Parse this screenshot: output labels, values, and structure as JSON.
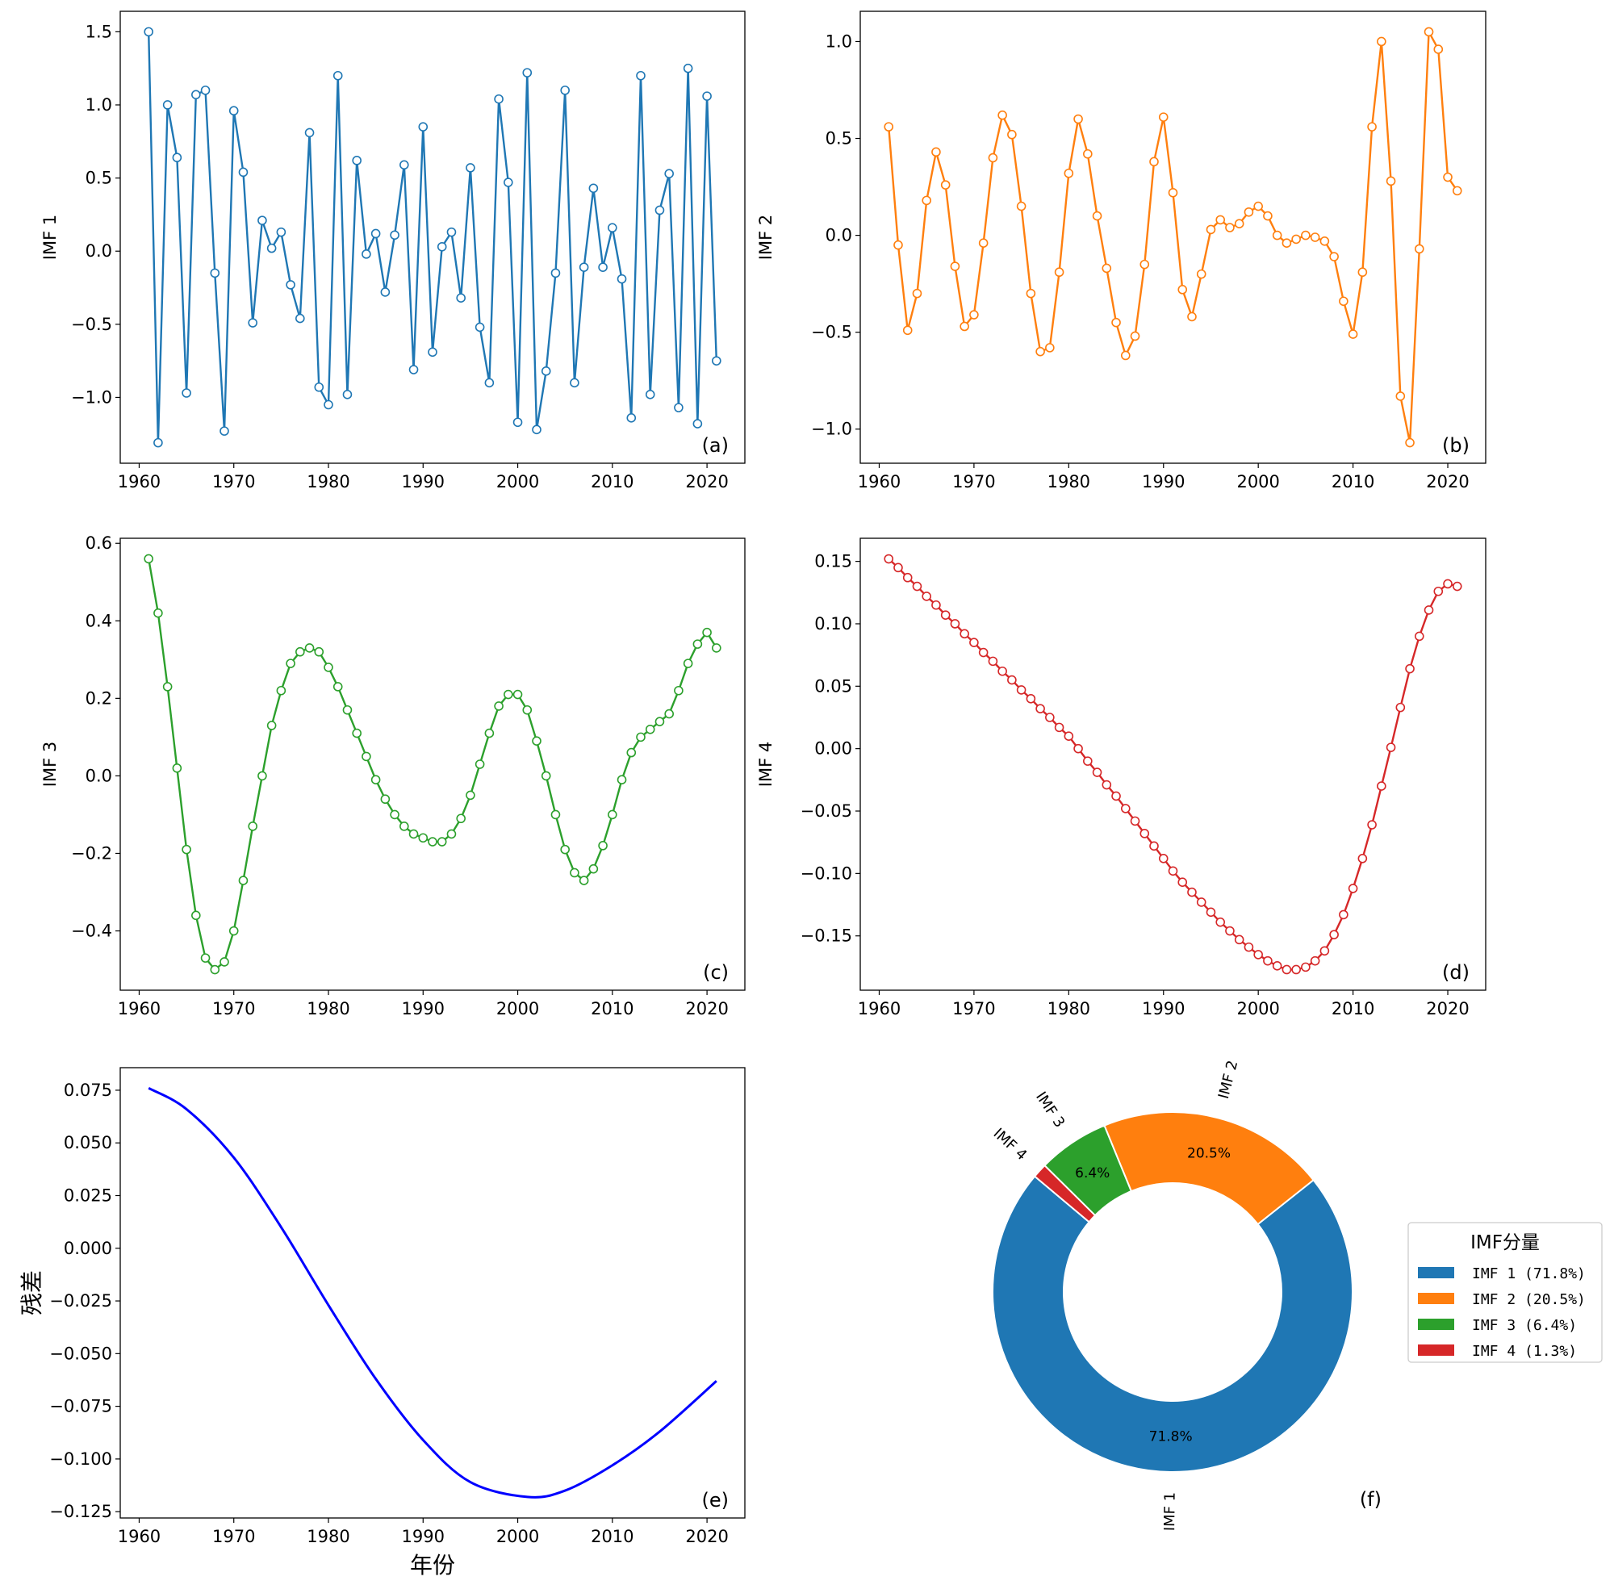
{
  "chart_data": [
    {
      "type": "line",
      "panel_label": "(a)",
      "ylabel": "IMF 1",
      "xlabel": "",
      "color": "#1f77b4",
      "markers": "hollow-circle",
      "xlim": [
        1958,
        2024
      ],
      "ylim": [
        -1.45,
        1.64
      ],
      "xticks": [
        1960,
        1970,
        1980,
        1990,
        2000,
        2010,
        2020
      ],
      "xtick_labels": [
        "1960",
        "1970",
        "1980",
        "1990",
        "2000",
        "2010",
        "2020"
      ],
      "yticks": [
        -1.0,
        -0.5,
        0.0,
        0.5,
        1.0,
        1.5
      ],
      "ytick_labels": [
        "−1.0",
        "−0.5",
        "0.0",
        "0.5",
        "1.0",
        "1.5"
      ],
      "x_start": 1961,
      "values": [
        1.5,
        -1.31,
        1.0,
        0.64,
        -0.97,
        1.07,
        1.1,
        -0.15,
        -1.23,
        0.96,
        0.54,
        -0.49,
        0.21,
        0.02,
        0.13,
        -0.23,
        -0.46,
        0.81,
        -0.93,
        -1.05,
        1.2,
        -0.98,
        0.62,
        -0.02,
        0.12,
        -0.28,
        0.11,
        0.59,
        -0.81,
        0.85,
        -0.69,
        0.03,
        0.13,
        -0.32,
        0.57,
        -0.52,
        -0.9,
        1.04,
        0.47,
        -1.17,
        1.22,
        -1.22,
        -0.82,
        -0.15,
        1.1,
        -0.9,
        -0.11,
        0.43,
        -0.11,
        0.16,
        -0.19,
        -1.14,
        1.2,
        -0.98,
        0.28,
        0.53,
        -1.07,
        1.25,
        -1.18,
        1.06,
        -0.75
      ]
    },
    {
      "type": "line",
      "panel_label": "(b)",
      "ylabel": "IMF 2",
      "xlabel": "",
      "color": "#ff7f0e",
      "markers": "hollow-circle",
      "xlim": [
        1958,
        2024
      ],
      "ylim": [
        -1.176,
        1.156
      ],
      "xticks": [
        1960,
        1970,
        1980,
        1990,
        2000,
        2010,
        2020
      ],
      "xtick_labels": [
        "1960",
        "1970",
        "1980",
        "1990",
        "2000",
        "2010",
        "2020"
      ],
      "yticks": [
        -1.0,
        -0.5,
        0.0,
        0.5,
        1.0
      ],
      "ytick_labels": [
        "−1.0",
        "−0.5",
        "0.0",
        "0.5",
        "1.0"
      ],
      "x_start": 1961,
      "values": [
        0.56,
        -0.05,
        -0.49,
        -0.3,
        0.18,
        0.43,
        0.26,
        -0.16,
        -0.47,
        -0.41,
        -0.04,
        0.4,
        0.62,
        0.52,
        0.15,
        -0.3,
        -0.6,
        -0.58,
        -0.19,
        0.32,
        0.6,
        0.42,
        0.1,
        -0.17,
        -0.45,
        -0.62,
        -0.52,
        -0.15,
        0.38,
        0.61,
        0.22,
        -0.28,
        -0.42,
        -0.2,
        0.03,
        0.08,
        0.04,
        0.06,
        0.12,
        0.15,
        0.1,
        0.0,
        -0.04,
        -0.02,
        0.0,
        -0.01,
        -0.03,
        -0.11,
        -0.34,
        -0.51,
        -0.19,
        0.56,
        1.0,
        0.28,
        -0.83,
        -1.07,
        -0.07,
        1.05,
        0.96,
        0.3,
        0.23
      ]
    },
    {
      "type": "line",
      "panel_label": "(c)",
      "ylabel": "IMF 3",
      "xlabel": "",
      "color": "#2ca02c",
      "markers": "hollow-circle",
      "xlim": [
        1958,
        2024
      ],
      "ylim": [
        -0.553,
        0.613
      ],
      "xticks": [
        1960,
        1970,
        1980,
        1990,
        2000,
        2010,
        2020
      ],
      "xtick_labels": [
        "1960",
        "1970",
        "1980",
        "1990",
        "2000",
        "2010",
        "2020"
      ],
      "yticks": [
        -0.4,
        -0.2,
        0.0,
        0.2,
        0.4,
        0.6
      ],
      "ytick_labels": [
        "−0.4",
        "−0.2",
        "0.0",
        "0.2",
        "0.4",
        "0.6"
      ],
      "x_start": 1961,
      "values": [
        0.56,
        0.42,
        0.23,
        0.02,
        -0.19,
        -0.36,
        -0.47,
        -0.5,
        -0.48,
        -0.4,
        -0.27,
        -0.13,
        0.0,
        0.13,
        0.22,
        0.29,
        0.32,
        0.33,
        0.32,
        0.28,
        0.23,
        0.17,
        0.11,
        0.05,
        -0.01,
        -0.06,
        -0.1,
        -0.13,
        -0.15,
        -0.16,
        -0.17,
        -0.17,
        -0.15,
        -0.11,
        -0.05,
        0.03,
        0.11,
        0.18,
        0.21,
        0.21,
        0.17,
        0.09,
        0.0,
        -0.1,
        -0.19,
        -0.25,
        -0.27,
        -0.24,
        -0.18,
        -0.1,
        -0.01,
        0.06,
        0.1,
        0.12,
        0.14,
        0.16,
        0.22,
        0.29,
        0.34,
        0.37,
        0.33
      ]
    },
    {
      "type": "line",
      "panel_label": "(d)",
      "ylabel": "IMF 4",
      "xlabel": "",
      "color": "#d62728",
      "markers": "hollow-circle",
      "xlim": [
        1958,
        2024
      ],
      "ylim": [
        -0.1935,
        0.1685
      ],
      "xticks": [
        1960,
        1970,
        1980,
        1990,
        2000,
        2010,
        2020
      ],
      "xtick_labels": [
        "1960",
        "1970",
        "1980",
        "1990",
        "2000",
        "2010",
        "2020"
      ],
      "yticks": [
        -0.15,
        -0.1,
        -0.05,
        0.0,
        0.05,
        0.1,
        0.15
      ],
      "ytick_labels": [
        "−0.15",
        "−0.10",
        "−0.05",
        "0.00",
        "0.05",
        "0.10",
        "0.15"
      ],
      "x_start": 1961,
      "values": [
        0.152,
        0.145,
        0.137,
        0.13,
        0.122,
        0.115,
        0.107,
        0.1,
        0.092,
        0.085,
        0.077,
        0.07,
        0.062,
        0.055,
        0.047,
        0.04,
        0.032,
        0.025,
        0.017,
        0.01,
        0.0,
        -0.01,
        -0.019,
        -0.029,
        -0.038,
        -0.048,
        -0.058,
        -0.068,
        -0.078,
        -0.088,
        -0.098,
        -0.107,
        -0.115,
        -0.123,
        -0.131,
        -0.139,
        -0.146,
        -0.153,
        -0.159,
        -0.165,
        -0.17,
        -0.174,
        -0.177,
        -0.177,
        -0.175,
        -0.17,
        -0.162,
        -0.149,
        -0.133,
        -0.112,
        -0.088,
        -0.061,
        -0.03,
        0.001,
        0.033,
        0.064,
        0.09,
        0.111,
        0.126,
        0.132,
        0.13
      ]
    },
    {
      "type": "line",
      "panel_label": "(e)",
      "ylabel": "残差",
      "xlabel": "年份",
      "color": "#0000ff",
      "markers": "none",
      "xlim": [
        1958,
        2024
      ],
      "ylim": [
        -0.128,
        0.0857
      ],
      "xticks": [
        1960,
        1970,
        1980,
        1990,
        2000,
        2010,
        2020
      ],
      "xtick_labels": [
        "1960",
        "1970",
        "1980",
        "1990",
        "2000",
        "2010",
        "2020"
      ],
      "yticks": [
        -0.125,
        -0.1,
        -0.075,
        -0.05,
        -0.025,
        0.0,
        0.025,
        0.05,
        0.075
      ],
      "ytick_labels": [
        "−0.125",
        "−0.100",
        "−0.075",
        "−0.050",
        "−0.025",
        "0.000",
        "0.025",
        "0.050",
        "0.075"
      ],
      "x": [
        1961,
        1965,
        1970,
        1975,
        1980,
        1985,
        1990,
        1995,
        2001,
        2005,
        2010,
        2015,
        2021
      ],
      "values": [
        0.076,
        0.066,
        0.043,
        0.01,
        -0.027,
        -0.062,
        -0.091,
        -0.111,
        -0.118,
        -0.115,
        -0.103,
        -0.087,
        -0.063
      ]
    },
    {
      "type": "pie",
      "panel_label": "(f)",
      "donut": true,
      "startangle": 140,
      "labels": [
        "IMF 1",
        "IMF 2",
        "IMF 3",
        "IMF 4"
      ],
      "values": [
        71.8,
        20.5,
        6.4,
        1.3
      ],
      "pct_labels": [
        "71.8%",
        "20.5%",
        "6.4%",
        ""
      ],
      "colors": [
        "#1f77b4",
        "#ff7f0e",
        "#2ca02c",
        "#d62728"
      ],
      "legend": {
        "title": "IMF分量",
        "placement": "right",
        "entries": [
          "IMF 1 (71.8%)",
          "IMF 2 (20.5%)",
          "IMF 3 (6.4%)",
          "IMF 4 (1.3%)"
        ]
      }
    }
  ]
}
